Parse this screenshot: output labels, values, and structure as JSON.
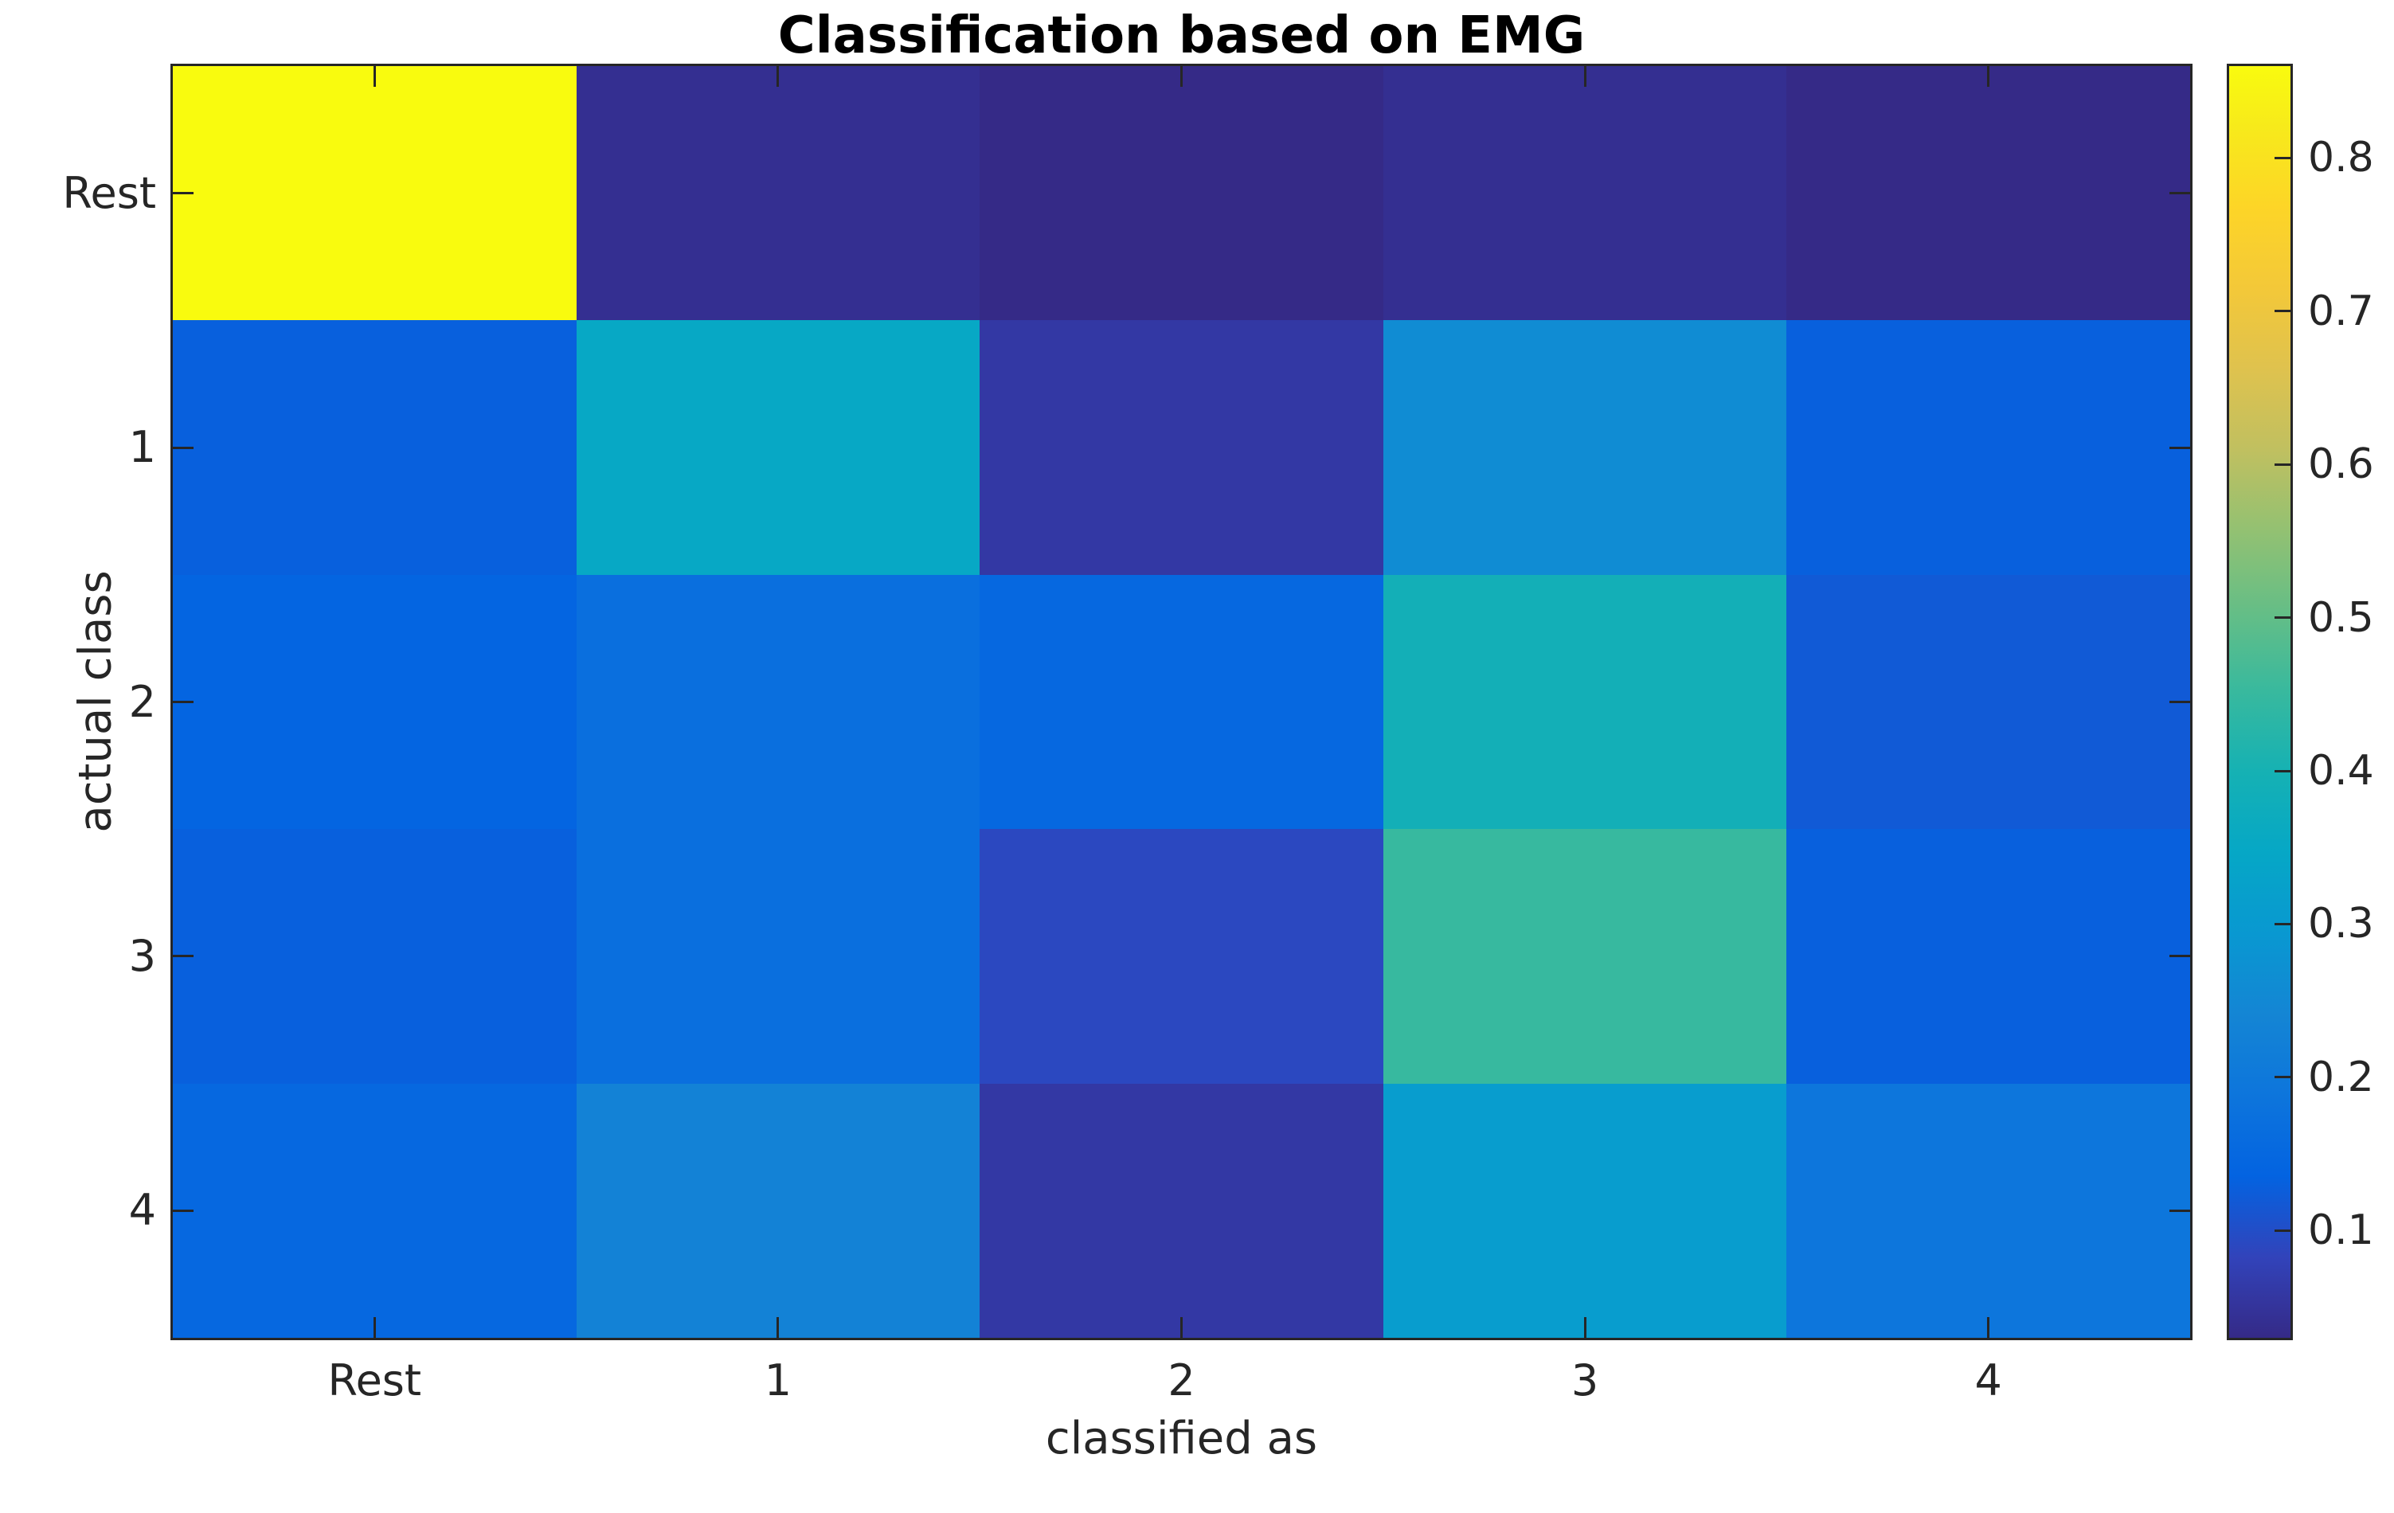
{
  "figure": {
    "title": "Classification based on EMG"
  },
  "chart_data": {
    "type": "heatmap",
    "title": "Classification based on EMG",
    "xlabel": "classified as",
    "ylabel": "actual class",
    "x_tick_labels": [
      "Rest",
      "1",
      "2",
      "3",
      "4"
    ],
    "y_tick_labels": [
      "Rest",
      "1",
      "2",
      "3",
      "4"
    ],
    "rows": [
      {
        "actual": "Rest",
        "values": [
          0.86,
          0.04,
          0.03,
          0.04,
          0.03
        ]
      },
      {
        "actual": "1",
        "values": [
          0.13,
          0.35,
          0.06,
          0.26,
          0.13
        ]
      },
      {
        "actual": "2",
        "values": [
          0.14,
          0.17,
          0.15,
          0.39,
          0.12
        ]
      },
      {
        "actual": "3",
        "values": [
          0.13,
          0.17,
          0.09,
          0.45,
          0.13
        ]
      },
      {
        "actual": "4",
        "values": [
          0.15,
          0.23,
          0.06,
          0.31,
          0.19
        ]
      }
    ],
    "zlim": [
      0.03,
      0.86
    ],
    "grid": "off",
    "legend_position": "colorbar-right",
    "colorbar": {
      "tick_values": [
        0.1,
        0.2,
        0.3,
        0.4,
        0.5,
        0.6,
        0.7,
        0.8
      ],
      "tick_labels": [
        "0.1",
        "0.2",
        "0.3",
        "0.4",
        "0.5",
        "0.6",
        "0.7",
        "0.8"
      ]
    },
    "colormap_name": "parula",
    "colormap_stops": [
      {
        "t": 0.0,
        "rgb": [
          53,
          42,
          135
        ]
      },
      {
        "t": 0.063,
        "rgb": [
          50,
          67,
          186
        ]
      },
      {
        "t": 0.127,
        "rgb": [
          3,
          99,
          225
        ]
      },
      {
        "t": 0.19,
        "rgb": [
          13,
          117,
          220
        ]
      },
      {
        "t": 0.254,
        "rgb": [
          20,
          133,
          212
        ]
      },
      {
        "t": 0.317,
        "rgb": [
          9,
          152,
          209
        ]
      },
      {
        "t": 0.381,
        "rgb": [
          6,
          167,
          198
        ]
      },
      {
        "t": 0.444,
        "rgb": [
          21,
          177,
          180
        ]
      },
      {
        "t": 0.508,
        "rgb": [
          56,
          185,
          158
        ]
      },
      {
        "t": 0.571,
        "rgb": [
          101,
          190,
          134
        ]
      },
      {
        "t": 0.635,
        "rgb": [
          147,
          193,
          114
        ]
      },
      {
        "t": 0.698,
        "rgb": [
          192,
          192,
          96
        ]
      },
      {
        "t": 0.762,
        "rgb": [
          223,
          194,
          78
        ]
      },
      {
        "t": 0.825,
        "rgb": [
          243,
          200,
          57
        ]
      },
      {
        "t": 0.889,
        "rgb": [
          253,
          213,
          39
        ]
      },
      {
        "t": 0.952,
        "rgb": [
          247,
          234,
          27
        ]
      },
      {
        "t": 1.0,
        "rgb": [
          249,
          251,
          14
        ]
      }
    ],
    "colors": {
      "axis": "#262626",
      "title_text": "#000000",
      "background": "#ffffff"
    }
  }
}
